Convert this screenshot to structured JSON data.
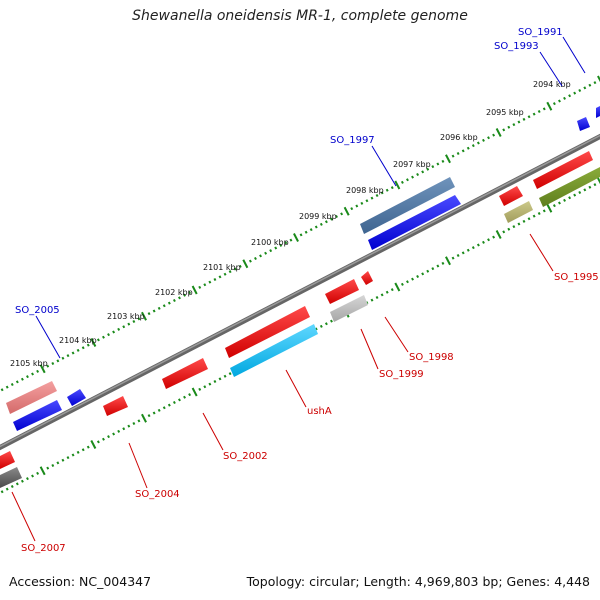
{
  "title": "Shewanella oneidensis MR-1, complete genome",
  "footer": {
    "accession": "Accession: NC_004347",
    "summary": "Topology: circular; Length: 4,969,803 bp; Genes: 4,448"
  },
  "kbp_labels": [
    "2094 kbp",
    "2095 kbp",
    "2096 kbp",
    "2097 kbp",
    "2098 kbp",
    "2099 kbp",
    "2100 kbp",
    "2101 kbp",
    "2102 kbp",
    "2103 kbp",
    "2104 kbp",
    "2105 kbp"
  ],
  "gene_labels_forward": [
    "SO_1991",
    "SO_1993",
    "SO_1997",
    "SO_2005"
  ],
  "gene_labels_reverse": [
    "SO_1995",
    "SO_1998",
    "SO_1999",
    "ushA",
    "SO_2002",
    "SO_2004",
    "SO_2007"
  ],
  "colors": {
    "forward_label": "#0000cc",
    "reverse_label": "#cc0000",
    "tick": "#1a8a1a",
    "backbone": "#777777"
  }
}
